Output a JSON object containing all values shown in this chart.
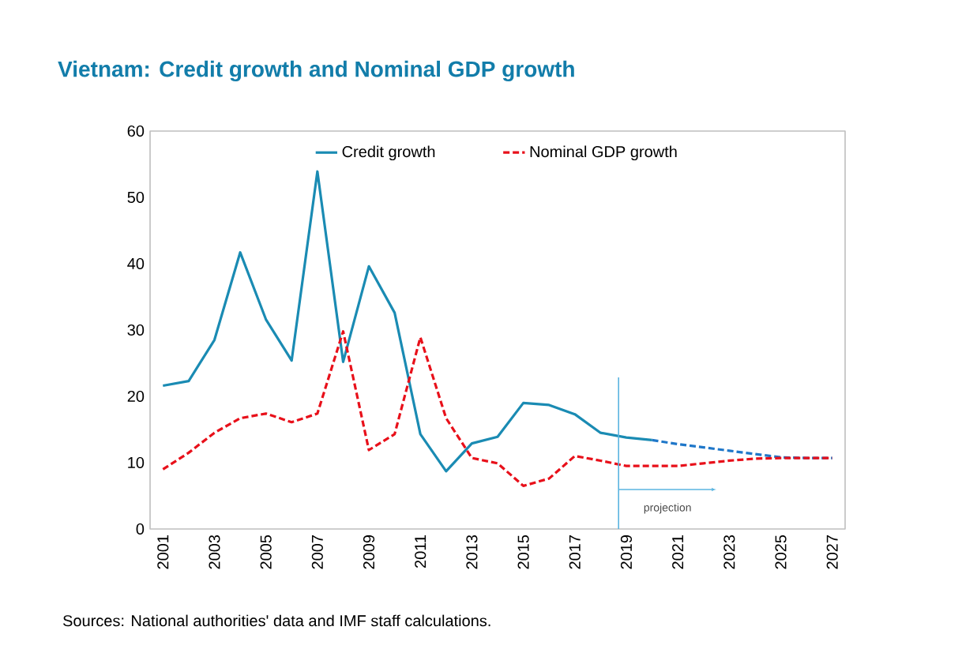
{
  "chart_data": {
    "type": "line",
    "title": "Vietnam: Credit growth and Nominal GDP growth",
    "xlim": [
      2000.5,
      2027.5
    ],
    "xticks": [
      2001,
      2003,
      2005,
      2007,
      2009,
      2011,
      2013,
      2015,
      2017,
      2019,
      2021,
      2023,
      2025,
      2027
    ],
    "ylim": [
      0,
      60
    ],
    "yticks": [
      0,
      10,
      20,
      30,
      40,
      50,
      60
    ],
    "legend": "top",
    "grid": false,
    "marker": "none",
    "series": [
      {
        "name": "Credit growth",
        "color": "#1a8bb3",
        "line_style": "solid",
        "x": [
          2001,
          2002,
          2003,
          2004,
          2005,
          2006,
          2007,
          2008,
          2009,
          2010,
          2011,
          2012,
          2013,
          2014,
          2015,
          2016,
          2017,
          2018,
          2019,
          2020
        ],
        "values": [
          21.6,
          22.3,
          28.5,
          41.7,
          31.6,
          25.4,
          53.9,
          25.2,
          39.6,
          32.6,
          14.3,
          8.7,
          12.9,
          13.9,
          19.0,
          18.7,
          17.3,
          14.5,
          13.8,
          13.4
        ]
      },
      {
        "color": "#1f77c9",
        "line_style": "dashed",
        "x": [
          2020,
          2021,
          2022,
          2023,
          2024,
          2025,
          2026,
          2027
        ],
        "values": [
          13.4,
          12.8,
          12.3,
          11.8,
          11.3,
          10.8,
          10.7,
          10.7
        ]
      },
      {
        "name": "Nominal GDP growth",
        "color": "#e8101a",
        "line_style": "dashed",
        "x": [
          2001,
          2002,
          2003,
          2004,
          2005,
          2006,
          2007,
          2008,
          2009,
          2010,
          2011,
          2012,
          2013,
          2014,
          2015,
          2016,
          2017,
          2018,
          2019,
          2020,
          2021,
          2022,
          2023,
          2024,
          2025,
          2026,
          2027
        ],
        "values": [
          9.0,
          11.5,
          14.5,
          16.7,
          17.4,
          16.1,
          17.4,
          29.8,
          11.9,
          14.3,
          28.9,
          16.7,
          10.7,
          9.9,
          6.5,
          7.6,
          11.0,
          10.3,
          9.5,
          9.5,
          9.5,
          9.9,
          10.3,
          10.6,
          10.7,
          10.7,
          10.7
        ]
      }
    ],
    "ref_lines": [
      {
        "axis": "x",
        "value": 2018.7,
        "label": "projection",
        "color": "#5ab4e0"
      }
    ],
    "annotations": [
      "Sources: National authorities' data and IMF staff calculations."
    ]
  }
}
